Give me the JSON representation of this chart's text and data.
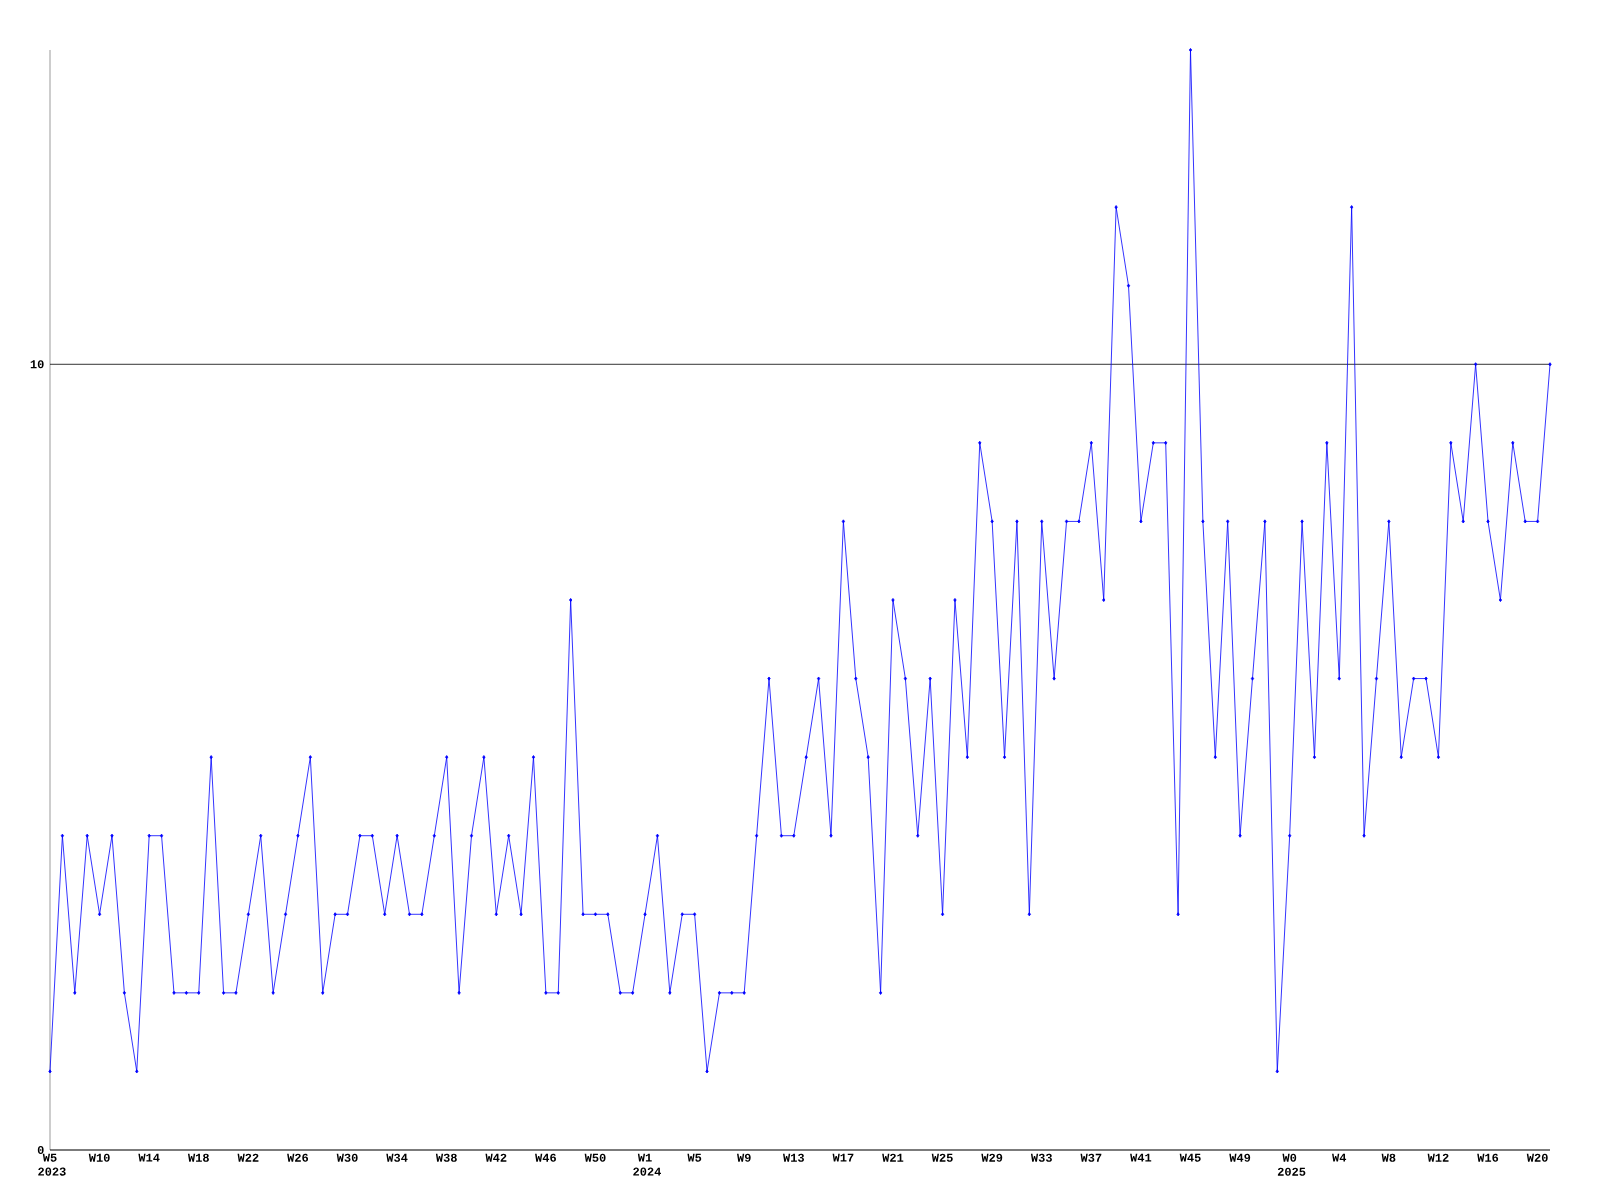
{
  "chart_data": {
    "type": "line",
    "categories": [
      "W5 2023",
      null,
      null,
      null,
      "W10",
      null,
      null,
      null,
      "W14",
      null,
      null,
      null,
      "W18",
      null,
      null,
      null,
      "W22",
      null,
      null,
      null,
      "W26",
      null,
      null,
      null,
      "W30",
      null,
      null,
      null,
      "W34",
      null,
      null,
      null,
      "W38",
      null,
      null,
      null,
      "W42",
      null,
      null,
      null,
      "W46",
      null,
      null,
      null,
      "W50",
      null,
      null,
      null,
      "W1 2024",
      null,
      null,
      null,
      "W5",
      null,
      null,
      null,
      "W9",
      null,
      null,
      null,
      "W13",
      null,
      null,
      null,
      "W17",
      null,
      null,
      null,
      "W21",
      null,
      null,
      null,
      "W25",
      null,
      null,
      null,
      "W29",
      null,
      null,
      null,
      "W33",
      null,
      null,
      null,
      "W37",
      null,
      null,
      null,
      "W41",
      null,
      null,
      null,
      "W45",
      null,
      null,
      null,
      "W49",
      null,
      null,
      null,
      "W0 2025",
      null,
      null,
      null,
      "W4",
      null,
      null,
      null,
      "W8",
      null,
      null,
      null,
      "W12",
      null,
      null,
      null,
      "W16",
      null,
      null,
      null,
      "W20",
      null
    ],
    "values": [
      1,
      4,
      2,
      4,
      3,
      4,
      2,
      1,
      4,
      4,
      2,
      2,
      2,
      5,
      2,
      2,
      3,
      4,
      2,
      3,
      4,
      5,
      2,
      3,
      3,
      4,
      4,
      3,
      4,
      3,
      3,
      4,
      5,
      2,
      4,
      5,
      3,
      4,
      3,
      5,
      2,
      2,
      7,
      3,
      3,
      3,
      2,
      2,
      3,
      4,
      2,
      3,
      3,
      1,
      2,
      2,
      2,
      4,
      6,
      4,
      4,
      5,
      6,
      4,
      8,
      6,
      5,
      2,
      7,
      6,
      4,
      6,
      3,
      7,
      5,
      9,
      8,
      5,
      8,
      3,
      8,
      6,
      8,
      8,
      9,
      7,
      12,
      11,
      8,
      9,
      9,
      3,
      14,
      8,
      5,
      8,
      4,
      6,
      8,
      1,
      4,
      8,
      5,
      9,
      6,
      12,
      4,
      6,
      8,
      5,
      6,
      6,
      5,
      9,
      8,
      10,
      8,
      7,
      9,
      8,
      8,
      10
    ],
    "color": "#0000ff",
    "ylim": [
      0,
      14
    ],
    "yticks": [
      0,
      10
    ],
    "grid": "y",
    "marker": "diamond"
  }
}
